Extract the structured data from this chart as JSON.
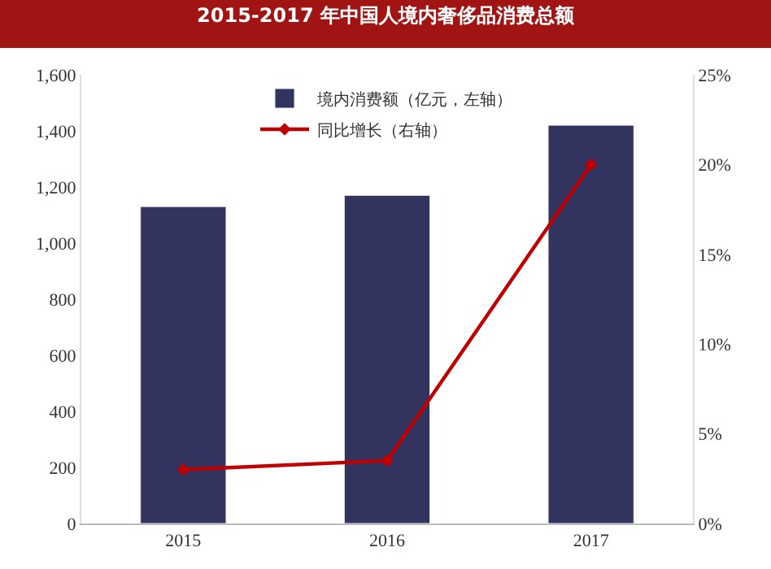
{
  "chart_data": {
    "type": "bar",
    "title": "2015-2017 年中国人境内奢侈品消费总额",
    "categories": [
      "2015",
      "2016",
      "2017"
    ],
    "series": [
      {
        "name": "境内消费额（亿元，左轴）",
        "color": "#33335f",
        "values": [
          1130,
          1170,
          1420
        ]
      },
      {
        "name": "同比增长（右轴）",
        "type": "line",
        "axis": "y2",
        "color": "#c00000",
        "marker": "diamond",
        "values": [
          3.0,
          3.5,
          20
        ]
      }
    ],
    "ylim": [
      0,
      1600
    ],
    "yticks": [
      {
        "value": 0,
        "label": "0"
      },
      {
        "value": 200,
        "label": "200"
      },
      {
        "value": 400,
        "label": "400"
      },
      {
        "value": 600,
        "label": "600"
      },
      {
        "value": 800,
        "label": "800"
      },
      {
        "value": 1000,
        "label": "1,000"
      },
      {
        "value": 1200,
        "label": "1,200"
      },
      {
        "value": 1400,
        "label": "1,400"
      },
      {
        "value": 1600,
        "label": "1,600"
      }
    ],
    "y2lim": [
      0,
      25
    ],
    "y2ticks": [
      {
        "value": 0,
        "label": "0%"
      },
      {
        "value": 5,
        "label": "5%"
      },
      {
        "value": 10,
        "label": "10%"
      },
      {
        "value": 15,
        "label": "15%"
      },
      {
        "value": 20,
        "label": "20%"
      },
      {
        "value": 25,
        "label": "25%"
      }
    ],
    "legend": "top"
  }
}
